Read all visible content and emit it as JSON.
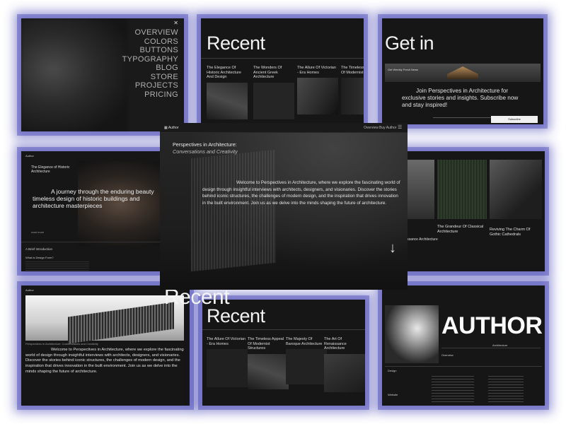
{
  "menu_card": {
    "close_icon": "close-icon",
    "items": [
      "OVERVIEW",
      "COLORS",
      "BUTTONS",
      "TYPOGRAPHY",
      "BLOG",
      "STORE",
      "PROJECTS",
      "PRICING"
    ]
  },
  "recent_top": {
    "title": "Recent",
    "posts": [
      {
        "title": "The Elegance Of Historic Architecture And Design"
      },
      {
        "title": "The Wonders Of Ancient Greek Architecture"
      },
      {
        "title": "The Allure Of Victorian - Era Homes"
      },
      {
        "title": "The Timeless Appeal Of Modernist"
      }
    ]
  },
  "get_in": {
    "title": "Get in",
    "banner": "Get Weekly Fresh News",
    "text": "Join Perspectives in Architecture for exclusive stories and insights. Subscribe now and stay inspired!",
    "button": "Subscribe"
  },
  "center": {
    "brand": "Author",
    "nav_links": [
      "Overview",
      "Buy Author"
    ],
    "menu_icon": "hamburger-icon",
    "heading": "Perspectives in Architecture:",
    "subheading": "Conversations and Creativity",
    "body": "Welcome to Perspectives in Architecture, where we explore the fascinating world of design through insightful interviews with architects, designers, and visionaries. Discover the stories behind iconic structures, the challenges of modern design, and the inspiration that drives innovation in the built environment. Join us as we delve into the minds shaping the future of architecture.",
    "arrow_icon": "arrow-down-icon"
  },
  "left_mid": {
    "brand": "Author",
    "heading": "The Elegance of Historic Architecture",
    "quote": "A journey through the enduring beauty timeless design of historic buildings and architecture masterpieces",
    "read": "read more",
    "intro_title": "A Brief Introduction",
    "question": "What is Design Form?"
  },
  "right_mid": {
    "posts": [
      {
        "title": "The Grandeur Of Classical Architecture"
      },
      {
        "title": "Reviving The Charm Of Gothic Cathedrals"
      }
    ],
    "partial": "issance Architecture"
  },
  "bottom_left": {
    "brand": "Author",
    "caption": "Perspectives in Architecture: Conversations and Creativity",
    "body": "Welcome to Perspectives in Architecture, where we explore the fascinating world of design through insightful interviews with architects, designers, and visionaries. Discover the stories behind iconic structures, the challenges of modern design, and the inspiration that drives innovation in the built environment. Join us as we delve into the minds shaping the future of architecture."
  },
  "recent_bottom": {
    "title": "Recent",
    "posts": [
      {
        "title": "The Allure Of Victorian - Era Homes"
      },
      {
        "title": "The Timeless Appeal Of Modernist Structures"
      },
      {
        "title": "The Majesty Of Baroque Architecture"
      },
      {
        "title": "The Art Of Renaissance Architecture"
      }
    ]
  },
  "author_card": {
    "title": "AUTHOR",
    "tag": "Architecture",
    "sections": [
      "Overview",
      "Design",
      "Website"
    ]
  },
  "background_text": "Recent"
}
